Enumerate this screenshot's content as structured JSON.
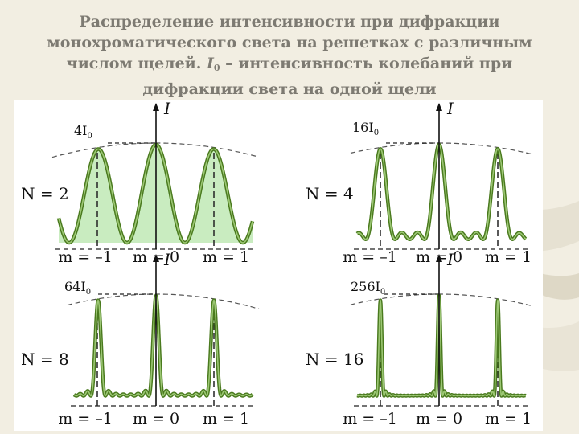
{
  "title": {
    "line1": "Распределение интенсивности при дифракции",
    "line2": "монохроматического света на решетках с различным",
    "line3_before": "числом щелей. ",
    "line3_symbol": "I",
    "line3_sub": "0",
    "line3_after": " – интенсивность колебаний при",
    "line4": "дифракции света на одной щели"
  },
  "axis_symbol": "I",
  "panels": [
    {
      "n_label": "N = 2",
      "peak_label": "4I",
      "peak_sub": "0",
      "m_labels": [
        "m = –1",
        "m = 0",
        "m = 1"
      ],
      "fill": true
    },
    {
      "n_label": "N = 4",
      "peak_label": "16I",
      "peak_sub": "0",
      "m_labels": [
        "m = –1",
        "m = 0",
        "m = 1"
      ],
      "fill": false
    },
    {
      "n_label": "N = 8",
      "peak_label": "64I",
      "peak_sub": "0",
      "m_labels": [
        "m = –1",
        "m = 0",
        "m = 1"
      ],
      "fill": false
    },
    {
      "n_label": "N = 16",
      "peak_label": "256I",
      "peak_sub": "0",
      "m_labels": [
        "m = –1",
        "m = 0",
        "m = 1"
      ],
      "fill": false
    }
  ],
  "colors": {
    "curve": "#4a7a1e",
    "curve_light": "#9cc774",
    "fill": "#c9ecc0",
    "title_text": "#7d7a72"
  }
}
